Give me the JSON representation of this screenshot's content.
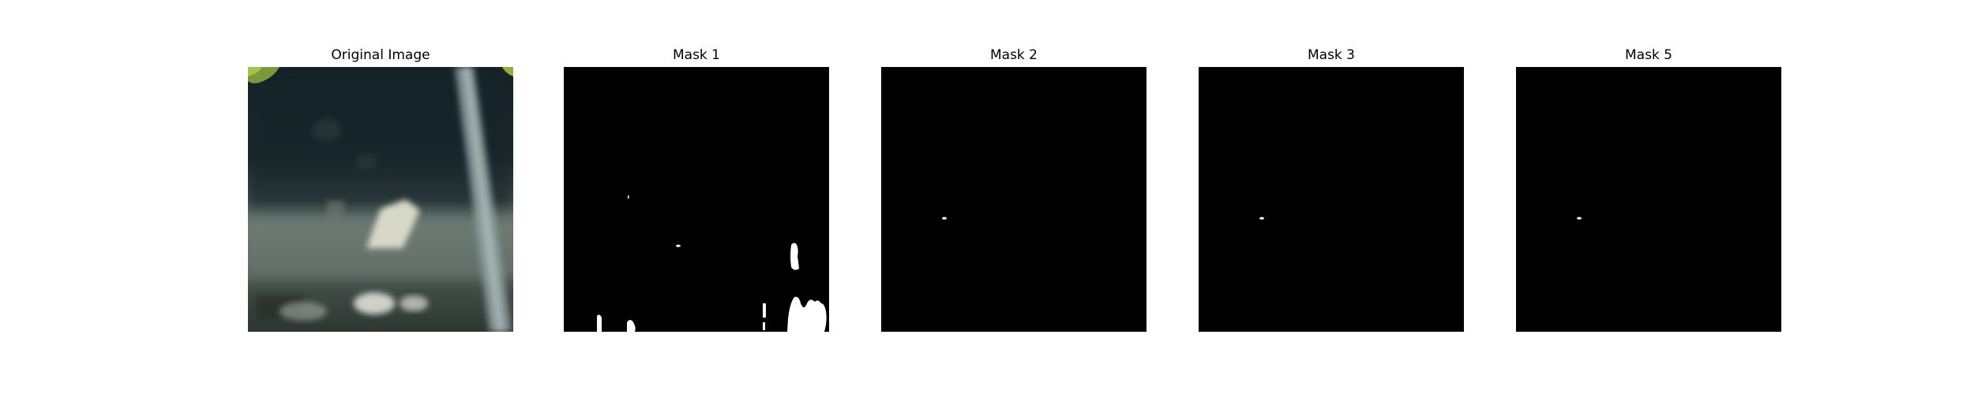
{
  "panels": [
    {
      "title": "Original Image"
    },
    {
      "title": "Mask 1"
    },
    {
      "title": "Mask 2"
    },
    {
      "title": "Mask 3"
    },
    {
      "title": "Mask 5"
    }
  ],
  "colors": {
    "background": "#ffffff",
    "mask_background": "#000000",
    "mask_foreground": "#ffffff"
  }
}
